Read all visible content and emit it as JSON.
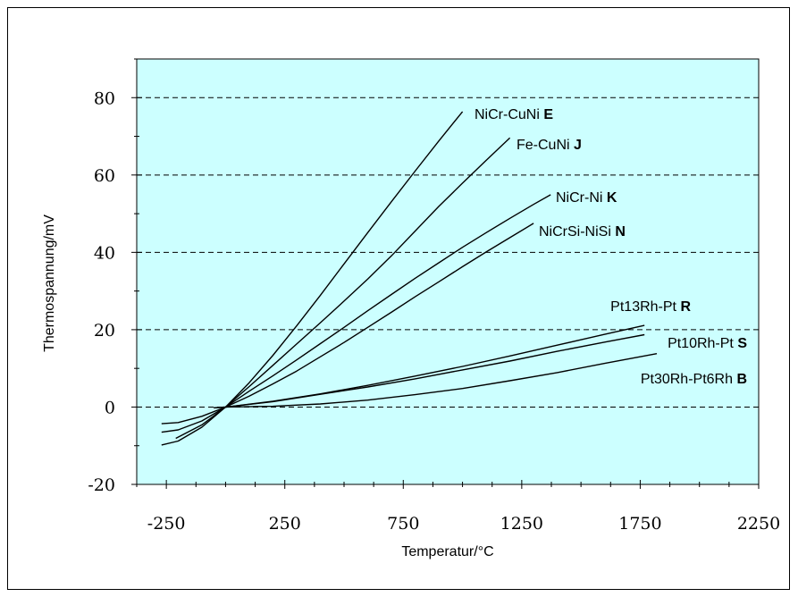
{
  "chart_data": {
    "type": "line",
    "title": "",
    "xlabel": "Temperatur/°C",
    "ylabel": "Thermospannung/mV",
    "xlim": [
      -375,
      2250
    ],
    "ylim": [
      -20,
      90
    ],
    "x_ticks": [
      -250,
      250,
      750,
      1250,
      1750,
      2250
    ],
    "x_tick_labels": [
      "-250",
      "250",
      "750",
      "1250",
      "1750",
      "2250"
    ],
    "y_ticks": [
      -20,
      0,
      20,
      40,
      60,
      80
    ],
    "y_tick_labels": [
      "-20",
      "0",
      "20",
      "40",
      "60",
      "80"
    ],
    "grid": "horizontal-dashed",
    "plot_background": "#ccffff",
    "line_color": "#000000",
    "series": [
      {
        "name": "NiCr-CuNi",
        "code": "E",
        "points": [
          [
            -270,
            -9.8
          ],
          [
            -200,
            -8.8
          ],
          [
            -100,
            -5.2
          ],
          [
            0,
            0
          ],
          [
            100,
            6.3
          ],
          [
            200,
            13.4
          ],
          [
            300,
            21.0
          ],
          [
            400,
            28.9
          ],
          [
            500,
            37.0
          ],
          [
            600,
            45.1
          ],
          [
            700,
            53.1
          ],
          [
            800,
            61.0
          ],
          [
            900,
            68.8
          ],
          [
            1000,
            76.4
          ]
        ]
      },
      {
        "name": "Fe-CuNi",
        "code": "J",
        "points": [
          [
            -210,
            -8.1
          ],
          [
            -100,
            -4.6
          ],
          [
            0,
            0
          ],
          [
            100,
            5.3
          ],
          [
            200,
            10.8
          ],
          [
            300,
            16.3
          ],
          [
            400,
            21.8
          ],
          [
            500,
            27.4
          ],
          [
            600,
            33.1
          ],
          [
            700,
            39.1
          ],
          [
            800,
            45.5
          ],
          [
            900,
            51.9
          ],
          [
            1000,
            57.9
          ],
          [
            1100,
            63.8
          ],
          [
            1200,
            69.6
          ]
        ]
      },
      {
        "name": "NiCr-Ni",
        "code": "K",
        "points": [
          [
            -270,
            -6.5
          ],
          [
            -200,
            -5.9
          ],
          [
            -100,
            -3.6
          ],
          [
            0,
            0
          ],
          [
            100,
            4.1
          ],
          [
            200,
            8.1
          ],
          [
            300,
            12.2
          ],
          [
            400,
            16.4
          ],
          [
            500,
            20.6
          ],
          [
            600,
            24.9
          ],
          [
            700,
            29.1
          ],
          [
            800,
            33.3
          ],
          [
            900,
            37.3
          ],
          [
            1000,
            41.3
          ],
          [
            1100,
            45.1
          ],
          [
            1200,
            48.8
          ],
          [
            1300,
            52.4
          ],
          [
            1372,
            54.9
          ]
        ]
      },
      {
        "name": "NiCrSi-NiSi",
        "code": "N",
        "points": [
          [
            -270,
            -4.3
          ],
          [
            -200,
            -4.0
          ],
          [
            -100,
            -2.4
          ],
          [
            0,
            0
          ],
          [
            100,
            2.8
          ],
          [
            200,
            6.0
          ],
          [
            300,
            9.3
          ],
          [
            400,
            13.0
          ],
          [
            500,
            16.7
          ],
          [
            600,
            20.6
          ],
          [
            700,
            24.5
          ],
          [
            800,
            28.5
          ],
          [
            900,
            32.4
          ],
          [
            1000,
            36.3
          ],
          [
            1100,
            40.1
          ],
          [
            1200,
            43.8
          ],
          [
            1300,
            47.5
          ]
        ]
      },
      {
        "name": "Pt13Rh-Pt",
        "code": "R",
        "points": [
          [
            -50,
            -0.2
          ],
          [
            0,
            0
          ],
          [
            200,
            1.5
          ],
          [
            400,
            3.4
          ],
          [
            600,
            5.6
          ],
          [
            800,
            8.0
          ],
          [
            1000,
            10.5
          ],
          [
            1200,
            13.2
          ],
          [
            1400,
            16.0
          ],
          [
            1600,
            18.8
          ],
          [
            1768,
            21.1
          ]
        ]
      },
      {
        "name": "Pt10Rh-Pt",
        "code": "S",
        "points": [
          [
            -50,
            -0.2
          ],
          [
            0,
            0
          ],
          [
            200,
            1.4
          ],
          [
            400,
            3.3
          ],
          [
            600,
            5.2
          ],
          [
            800,
            7.3
          ],
          [
            1000,
            9.6
          ],
          [
            1200,
            11.9
          ],
          [
            1400,
            14.4
          ],
          [
            1600,
            16.8
          ],
          [
            1768,
            18.7
          ]
        ]
      },
      {
        "name": "Pt30Rh-Pt6Rh",
        "code": "B",
        "points": [
          [
            0,
            0
          ],
          [
            200,
            0.2
          ],
          [
            400,
            0.8
          ],
          [
            600,
            1.8
          ],
          [
            800,
            3.2
          ],
          [
            1000,
            4.8
          ],
          [
            1200,
            6.8
          ],
          [
            1400,
            8.9
          ],
          [
            1600,
            11.3
          ],
          [
            1820,
            13.8
          ]
        ]
      }
    ]
  }
}
